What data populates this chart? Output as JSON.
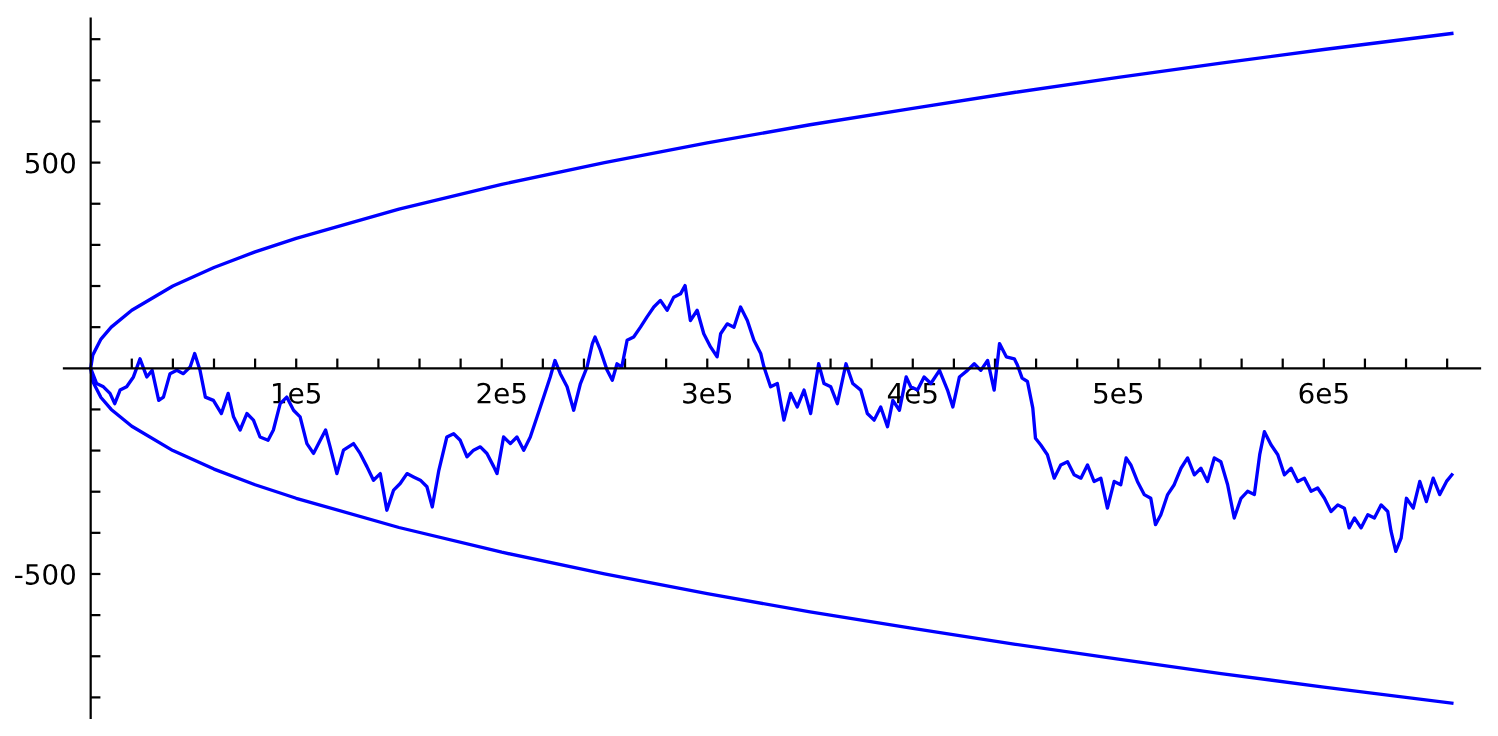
{
  "chart_data": {
    "type": "line",
    "xlim": [
      -13000,
      676000
    ],
    "ylim": [
      -850,
      850
    ],
    "grid": false,
    "marker": "none",
    "line_style": "solid",
    "xticks": [
      {
        "value": 20000,
        "label": null
      },
      {
        "value": 40000,
        "label": null
      },
      {
        "value": 60000,
        "label": null
      },
      {
        "value": 80000,
        "label": null
      },
      {
        "value": 100000,
        "label": "1e5"
      },
      {
        "value": 120000,
        "label": null
      },
      {
        "value": 140000,
        "label": null
      },
      {
        "value": 160000,
        "label": null
      },
      {
        "value": 180000,
        "label": null
      },
      {
        "value": 200000,
        "label": "2e5"
      },
      {
        "value": 220000,
        "label": null
      },
      {
        "value": 240000,
        "label": null
      },
      {
        "value": 260000,
        "label": null
      },
      {
        "value": 280000,
        "label": null
      },
      {
        "value": 300000,
        "label": "3e5"
      },
      {
        "value": 320000,
        "label": null
      },
      {
        "value": 340000,
        "label": null
      },
      {
        "value": 360000,
        "label": null
      },
      {
        "value": 380000,
        "label": null
      },
      {
        "value": 400000,
        "label": "4e5"
      },
      {
        "value": 420000,
        "label": null
      },
      {
        "value": 440000,
        "label": null
      },
      {
        "value": 460000,
        "label": null
      },
      {
        "value": 480000,
        "label": null
      },
      {
        "value": 500000,
        "label": "5e5"
      },
      {
        "value": 520000,
        "label": null
      },
      {
        "value": 540000,
        "label": null
      },
      {
        "value": 560000,
        "label": null
      },
      {
        "value": 580000,
        "label": null
      },
      {
        "value": 600000,
        "label": "6e5"
      },
      {
        "value": 620000,
        "label": null
      },
      {
        "value": 640000,
        "label": null
      },
      {
        "value": 660000,
        "label": null
      }
    ],
    "yticks": [
      {
        "value": -800,
        "label": null
      },
      {
        "value": -700,
        "label": null
      },
      {
        "value": -600,
        "label": null
      },
      {
        "value": -500,
        "label": "-500"
      },
      {
        "value": -400,
        "label": null
      },
      {
        "value": -300,
        "label": null
      },
      {
        "value": -200,
        "label": null
      },
      {
        "value": -100,
        "label": null
      },
      {
        "value": 100,
        "label": null
      },
      {
        "value": 200,
        "label": null
      },
      {
        "value": 300,
        "label": null
      },
      {
        "value": 400,
        "label": null
      },
      {
        "value": 500,
        "label": "500"
      },
      {
        "value": 600,
        "label": null
      },
      {
        "value": 700,
        "label": null
      },
      {
        "value": 800,
        "label": null
      }
    ],
    "series": [
      {
        "color": "#0000ff",
        "x": [
          662300,
          600000,
          550000,
          500000,
          450000,
          400000,
          350000,
          300000,
          250000,
          200000,
          150000,
          100000,
          80000,
          60000,
          40000,
          20000,
          10000,
          5000,
          1000,
          0,
          1000,
          5000,
          10000,
          20000,
          40000,
          60000,
          80000,
          100000,
          150000,
          200000,
          250000,
          300000,
          350000,
          400000,
          450000,
          500000,
          550000,
          600000,
          662300
        ],
        "values": [
          -814,
          -775,
          -742,
          -707,
          -671,
          -632,
          -592,
          -548,
          -500,
          -447,
          -387,
          -316,
          -283,
          -245,
          -200,
          -141,
          -100,
          -71,
          -32,
          0,
          32,
          71,
          100,
          141,
          200,
          245,
          283,
          316,
          387,
          447,
          500,
          548,
          592,
          632,
          671,
          707,
          742,
          775,
          814
        ]
      },
      {
        "color": "#0000ff",
        "x": [
          0,
          2900,
          6200,
          9400,
          11700,
          14300,
          17500,
          20800,
          24000,
          27300,
          29900,
          33100,
          35400,
          38600,
          41900,
          45100,
          48400,
          50600,
          53200,
          55800,
          59700,
          63600,
          66900,
          69500,
          72700,
          76000,
          79200,
          82400,
          86300,
          88900,
          92200,
          95400,
          98700,
          101900,
          105200,
          108400,
          111700,
          114300,
          116500,
          119800,
          123000,
          127900,
          131100,
          134400,
          137600,
          140900,
          144100,
          147400,
          150600,
          153900,
          157100,
          160400,
          163600,
          166200,
          169400,
          173300,
          176600,
          179800,
          183100,
          186300,
          189600,
          192800,
          196100,
          197700,
          200900,
          204200,
          207400,
          210700,
          213900,
          217200,
          220400,
          223600,
          225900,
          228500,
          231800,
          235000,
          238300,
          241500,
          244100,
          245400,
          248000,
          251300,
          253800,
          256100,
          258400,
          261000,
          264200,
          267500,
          270700,
          274000,
          277200,
          280500,
          283700,
          287000,
          289200,
          291800,
          295100,
          298300,
          301600,
          304800,
          306500,
          309700,
          313000,
          316200,
          319500,
          322700,
          326000,
          327600,
          330800,
          334100,
          337300,
          340600,
          343800,
          347100,
          350300,
          354200,
          356800,
          360100,
          363300,
          367500,
          370800,
          374700,
          377900,
          381200,
          384400,
          387700,
          390300,
          393500,
          396800,
          399000,
          402300,
          405500,
          408800,
          413000,
          416900,
          419500,
          422700,
          426600,
          429900,
          433100,
          436400,
          439600,
          442200,
          445500,
          449400,
          450900,
          453200,
          455800,
          458400,
          459700,
          462200,
          465500,
          468800,
          472000,
          475300,
          478500,
          481800,
          485000,
          488200,
          491500,
          494700,
          498000,
          501200,
          503800,
          506100,
          509300,
          512600,
          515800,
          518100,
          520700,
          524000,
          527200,
          530500,
          533700,
          537000,
          540200,
          543400,
          546700,
          549900,
          553200,
          556400,
          559700,
          562900,
          566200,
          568800,
          571100,
          574300,
          577600,
          580800,
          584100,
          587300,
          590500,
          593800,
          597000,
          600300,
          603500,
          606800,
          610000,
          612300,
          614900,
          618100,
          621400,
          624600,
          627900,
          631100,
          632700,
          635000,
          637600,
          640200,
          643500,
          646700,
          649900,
          653200,
          656400,
          659700,
          662300
        ],
        "values": [
          0,
          -37,
          -45,
          -61,
          -86,
          -53,
          -45,
          -21,
          23,
          -21,
          -5,
          -78,
          -70,
          -13,
          -5,
          -13,
          3,
          36,
          -5,
          -70,
          -78,
          -110,
          -61,
          -118,
          -150,
          -110,
          -126,
          -167,
          -175,
          -150,
          -86,
          -70,
          -102,
          -118,
          -183,
          -207,
          -175,
          -150,
          -191,
          -256,
          -199,
          -183,
          -207,
          -239,
          -272,
          -256,
          -345,
          -296,
          -280,
          -256,
          -264,
          -272,
          -288,
          -337,
          -248,
          -167,
          -159,
          -175,
          -215,
          -199,
          -191,
          -207,
          -239,
          -256,
          -167,
          -183,
          -167,
          -199,
          -167,
          -118,
          -70,
          -21,
          19,
          -13,
          -45,
          -102,
          -37,
          3,
          60,
          76,
          44,
          -5,
          -29,
          11,
          3,
          68,
          76,
          100,
          125,
          149,
          165,
          141,
          173,
          181,
          201,
          116,
          141,
          84,
          52,
          28,
          84,
          108,
          100,
          149,
          116,
          68,
          36,
          3,
          -45,
          -37,
          -126,
          -61,
          -94,
          -53,
          -110,
          11,
          -37,
          -45,
          -86,
          11,
          -37,
          -53,
          -110,
          -126,
          -94,
          -142,
          -78,
          -102,
          -21,
          -45,
          -53,
          -21,
          -37,
          -5,
          -53,
          -94,
          -21,
          -5,
          11,
          -5,
          19,
          -53,
          60,
          28,
          23,
          8,
          -24,
          -32,
          -97,
          -170,
          -186,
          -210,
          -267,
          -235,
          -227,
          -259,
          -267,
          -235,
          -275,
          -267,
          -340,
          -275,
          -283,
          -218,
          -235,
          -275,
          -307,
          -316,
          -380,
          -356,
          -307,
          -283,
          -243,
          -218,
          -259,
          -243,
          -275,
          -218,
          -227,
          -283,
          -364,
          -316,
          -299,
          -307,
          -210,
          -154,
          -186,
          -210,
          -259,
          -243,
          -275,
          -267,
          -299,
          -291,
          -316,
          -348,
          -332,
          -340,
          -388,
          -364,
          -388,
          -356,
          -364,
          -332,
          -348,
          -396,
          -445,
          -413,
          -316,
          -340,
          -275,
          -324,
          -267,
          -307,
          -275,
          -259
        ]
      }
    ]
  }
}
